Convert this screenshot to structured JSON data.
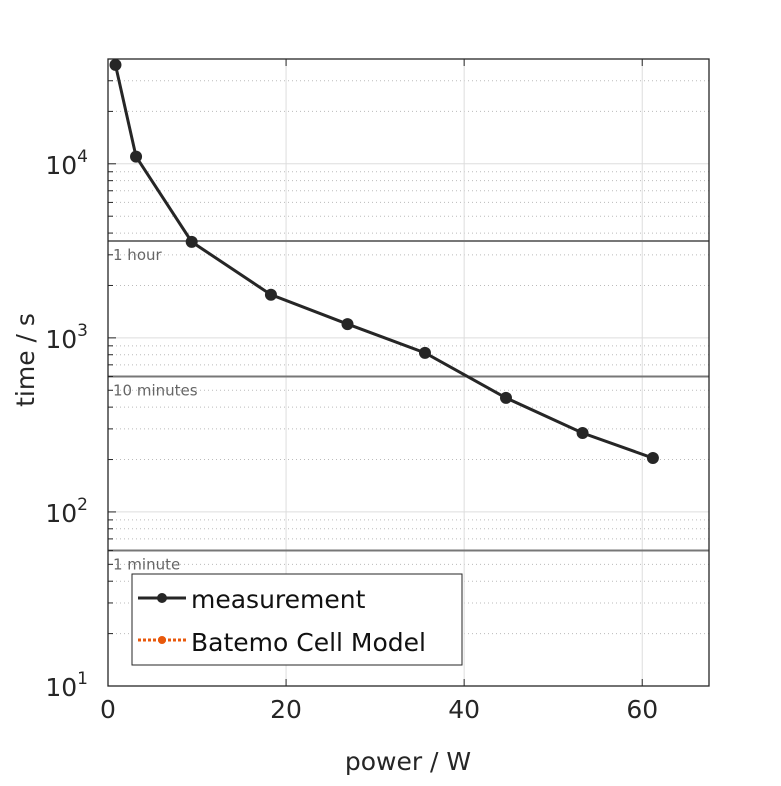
{
  "chart_data": {
    "type": "line",
    "xlabel": "power / W",
    "ylabel": "time / s",
    "xlim": [
      0,
      67.5
    ],
    "ylim": [
      10,
      40000
    ],
    "yscale": "log",
    "grid": true,
    "xticks": [
      0,
      20,
      40,
      60
    ],
    "xtick_labels": [
      "0",
      "20",
      "40",
      "60"
    ],
    "yticks": [
      10,
      100,
      1000,
      10000
    ],
    "ytick_labels": [
      {
        "base": "10",
        "exp": "1"
      },
      {
        "base": "10",
        "exp": "2"
      },
      {
        "base": "10",
        "exp": "3"
      },
      {
        "base": "10",
        "exp": "4"
      }
    ],
    "series": [
      {
        "name": "measurement",
        "color": "#262626",
        "style": "solid",
        "x": [
          0.84,
          3.15,
          9.4,
          18.3,
          26.9,
          35.6,
          44.7,
          53.3,
          61.2
        ],
        "y": [
          37000,
          11000,
          3560,
          1770,
          1200,
          820,
          452,
          284,
          204
        ]
      },
      {
        "name": "Batemo Cell Model",
        "color": "#e8590c",
        "style": "dotted",
        "x": [],
        "y": []
      }
    ],
    "reference_lines": [
      {
        "label": "1 hour",
        "y": 3600
      },
      {
        "label": "10 minutes",
        "y": 600
      },
      {
        "label": "1 minute",
        "y": 60
      }
    ],
    "legend_placement": "bottom-left"
  }
}
